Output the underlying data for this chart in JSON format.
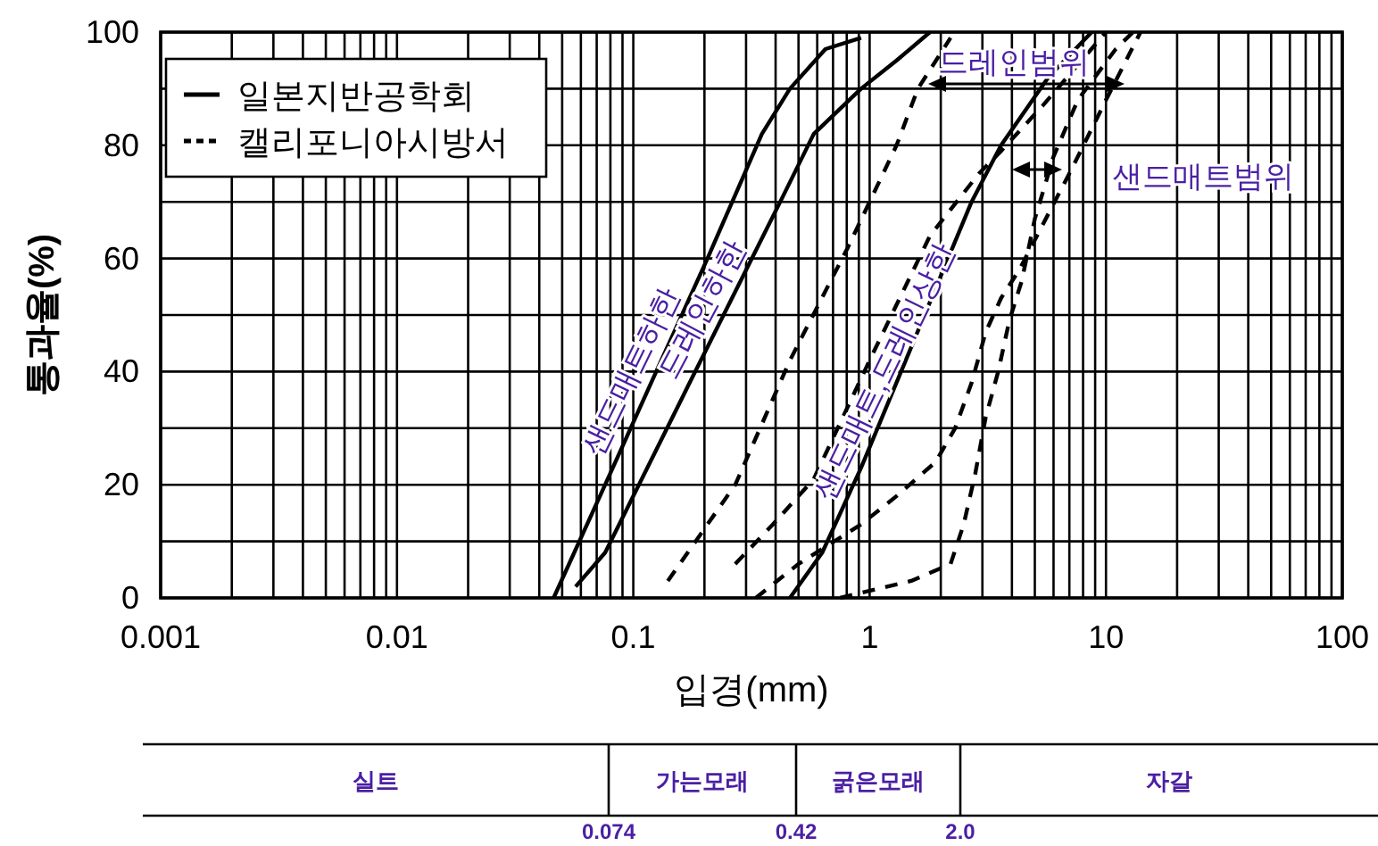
{
  "chart_data": [
    {
      "type": "line",
      "xlabel": "입경(mm)",
      "ylabel": "통과율(%)",
      "log": "x",
      "grid": true,
      "legend": "top left",
      "xlim": [
        0.001,
        100
      ],
      "ylim": [
        0,
        100
      ],
      "xticks": [
        0.001,
        {
          "value": 0.002,
          "label": null
        },
        {
          "value": 0.003,
          "label": null
        },
        {
          "value": 0.004,
          "label": null
        },
        {
          "value": 0.005,
          "label": null
        },
        {
          "value": 0.006,
          "label": null
        },
        {
          "value": 0.007,
          "label": null
        },
        {
          "value": 0.008,
          "label": null
        },
        {
          "value": 0.009,
          "label": null
        },
        0.01,
        {
          "value": 0.02,
          "label": null
        },
        {
          "value": 0.03,
          "label": null
        },
        {
          "value": 0.04,
          "label": null
        },
        {
          "value": 0.05,
          "label": null
        },
        {
          "value": 0.06,
          "label": null
        },
        {
          "value": 0.07,
          "label": null
        },
        {
          "value": 0.08,
          "label": null
        },
        {
          "value": 0.09,
          "label": null
        },
        0.1,
        {
          "value": 0.2,
          "label": null
        },
        {
          "value": 0.3,
          "label": null
        },
        {
          "value": 0.4,
          "label": null
        },
        {
          "value": 0.5,
          "label": null
        },
        {
          "value": 0.6,
          "label": null
        },
        {
          "value": 0.7,
          "label": null
        },
        {
          "value": 0.8,
          "label": null
        },
        {
          "value": 0.9,
          "label": null
        },
        1,
        {
          "value": 2,
          "label": null
        },
        {
          "value": 3,
          "label": null
        },
        {
          "value": 4,
          "label": null
        },
        {
          "value": 5,
          "label": null
        },
        {
          "value": 6,
          "label": null
        },
        {
          "value": 7,
          "label": null
        },
        {
          "value": 8,
          "label": null
        },
        {
          "value": 9,
          "label": null
        },
        10,
        {
          "value": 20,
          "label": null
        },
        {
          "value": 30,
          "label": null
        },
        {
          "value": 40,
          "label": null
        },
        {
          "value": 50,
          "label": null
        },
        {
          "value": 60,
          "label": null
        },
        {
          "value": 70,
          "label": null
        },
        {
          "value": 80,
          "label": null
        },
        {
          "value": 90,
          "label": null
        },
        100
      ],
      "yticks": [
        0,
        {
          "value": 10,
          "label": null
        },
        20,
        {
          "value": 30,
          "label": null
        },
        40,
        {
          "value": 50,
          "label": null
        },
        60,
        {
          "value": 70,
          "label": null
        },
        80,
        {
          "value": 90,
          "label": null
        },
        100
      ],
      "series": [
        {
          "name": "일본지반공학회",
          "color": "#000000",
          "line_style": "solid",
          "x": [
            0.046,
            0.076,
            0.125,
            0.206,
            0.275,
            0.35,
            0.46,
            0.65,
            0.92
          ],
          "values": [
            0,
            20,
            40,
            60,
            72,
            82,
            90,
            97,
            99
          ]
        },
        {
          "color": "#000000",
          "line_style": "solid",
          "x": [
            0.057,
            0.076,
            0.173,
            0.43,
            0.58,
            0.92,
            1.3,
            1.8
          ],
          "values": [
            2,
            8,
            38,
            71,
            82,
            90,
            95,
            100
          ]
        },
        {
          "color": "#000000",
          "line_style": "solid",
          "x": [
            0.46,
            0.63,
            0.92,
            2.7,
            3.6,
            5.7,
            8.7
          ],
          "values": [
            0,
            8,
            23,
            70,
            80,
            92,
            100
          ]
        },
        {
          "name": "캘리포니아시방서",
          "color": "#000000",
          "line_style": "dashed",
          "x": [
            0.14,
            0.27,
            0.46,
            0.81,
            1.3,
            1.6,
            2.2
          ],
          "values": [
            3,
            20,
            42,
            62,
            80,
            90,
            99
          ]
        },
        {
          "color": "#000000",
          "line_style": "dashed",
          "x": [
            0.27,
            0.39,
            0.58,
            1.0,
            1.8,
            2.9,
            3.6,
            5.4,
            10
          ],
          "values": [
            6,
            13,
            21,
            42,
            64,
            75,
            79,
            87,
            100
          ]
        },
        {
          "color": "#000000",
          "line_style": "dashed",
          "x": [
            0.33,
            0.5,
            0.92,
            1.3,
            1.9,
            2.3,
            2.7,
            3.1,
            3.6,
            4.3,
            7.2,
            10,
            14
          ],
          "values": [
            0,
            6,
            13,
            18,
            24,
            30,
            38,
            47,
            53,
            58,
            76,
            88,
            100
          ]
        },
        {
          "color": "#000000",
          "line_style": "dashed",
          "x": [
            0.75,
            1.5,
            2.2,
            2.5,
            2.8,
            3.1,
            3.5,
            3.9,
            4.4,
            5.0,
            6.0,
            7.6,
            11,
            13
          ],
          "values": [
            0,
            3,
            6,
            13,
            22,
            32,
            40,
            49,
            56,
            67,
            78,
            88,
            97,
            100
          ]
        }
      ],
      "annotations": [
        {
          "text": "샌드매트하한",
          "x": 0.125,
          "y": 40
        },
        {
          "text": "드레인하한",
          "x": 0.245,
          "y": 51
        },
        {
          "text": "샌드매트,드레인상한",
          "x": 1.37,
          "y": 40
        },
        "드레인범위",
        "샌드매트범위"
      ]
    },
    {
      "type": "other",
      "categories": [
        "실트",
        "가는모래",
        "굵은모래",
        "자갈"
      ],
      "annotations": [
        "0.074",
        "0.42",
        "2.0"
      ]
    }
  ]
}
